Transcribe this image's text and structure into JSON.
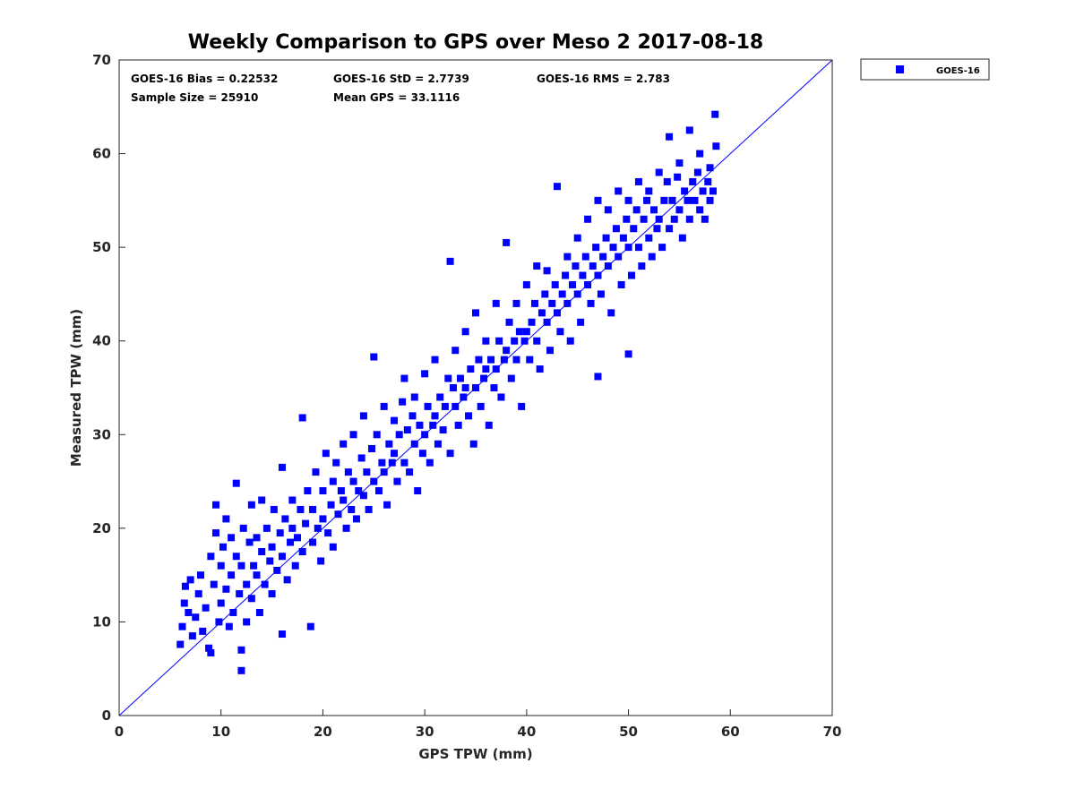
{
  "chart_data": {
    "type": "scatter",
    "title": "Weekly Comparison to GPS over Meso 2 2017-08-18",
    "xlabel": "GPS TPW (mm)",
    "ylabel": "Measured TPW (mm)",
    "xlim": [
      0,
      70
    ],
    "ylim": [
      0,
      70
    ],
    "xticks": [
      "0",
      "10",
      "20",
      "30",
      "40",
      "50",
      "60",
      "70"
    ],
    "yticks": [
      "0",
      "10",
      "20",
      "30",
      "40",
      "50",
      "60",
      "70"
    ],
    "grid": false,
    "legend": {
      "position": "outside-top-right",
      "entries": [
        "GOES-16"
      ]
    },
    "marker_color": "#0000ff",
    "reference_line": {
      "label": "1:1 line",
      "from": [
        0,
        0
      ],
      "to": [
        70,
        70
      ],
      "color": "#0000ff"
    },
    "stats": [
      "GOES-16 Bias = 0.22532",
      "GOES-16 StD = 2.7739",
      "GOES-16 RMS = 2.783",
      "Sample Size = 25910",
      "Mean GPS = 33.1116"
    ],
    "series": [
      {
        "name": "GOES-16",
        "note": "representative subset of the 25910 plotted samples",
        "points": [
          [
            6,
            7.6
          ],
          [
            6.2,
            9.5
          ],
          [
            6.4,
            12
          ],
          [
            6.5,
            13.8
          ],
          [
            6.8,
            11
          ],
          [
            7,
            14.5
          ],
          [
            7.2,
            8.5
          ],
          [
            7.5,
            10.5
          ],
          [
            7.8,
            13
          ],
          [
            8,
            15
          ],
          [
            8.2,
            9
          ],
          [
            8.5,
            11.5
          ],
          [
            8.8,
            7.2
          ],
          [
            9,
            6.7
          ],
          [
            9,
            17
          ],
          [
            9.3,
            14
          ],
          [
            9.5,
            19.5
          ],
          [
            9.5,
            22.5
          ],
          [
            9.8,
            10
          ],
          [
            10,
            12
          ],
          [
            10,
            16
          ],
          [
            10.2,
            18
          ],
          [
            10.5,
            13.5
          ],
          [
            10.5,
            21
          ],
          [
            10.8,
            9.5
          ],
          [
            11,
            15
          ],
          [
            11,
            19
          ],
          [
            11.2,
            11
          ],
          [
            11.5,
            24.8
          ],
          [
            11.5,
            17
          ],
          [
            11.8,
            13
          ],
          [
            12,
            4.8
          ],
          [
            12,
            7
          ],
          [
            12,
            16
          ],
          [
            12.2,
            20
          ],
          [
            12.5,
            14
          ],
          [
            12.5,
            10
          ],
          [
            12.8,
            18.5
          ],
          [
            13,
            12.5
          ],
          [
            13,
            22.5
          ],
          [
            13.2,
            16
          ],
          [
            13.5,
            15
          ],
          [
            13.5,
            19
          ],
          [
            13.8,
            11
          ],
          [
            14,
            17.5
          ],
          [
            14,
            23
          ],
          [
            14.3,
            14
          ],
          [
            14.5,
            20
          ],
          [
            14.8,
            16.5
          ],
          [
            15,
            13
          ],
          [
            15,
            18
          ],
          [
            15.2,
            22
          ],
          [
            15.5,
            15.5
          ],
          [
            15.8,
            19.5
          ],
          [
            16,
            8.7
          ],
          [
            16,
            17
          ],
          [
            16,
            26.5
          ],
          [
            16.3,
            21
          ],
          [
            16.5,
            14.5
          ],
          [
            16.8,
            18.5
          ],
          [
            17,
            20
          ],
          [
            17,
            23
          ],
          [
            17.3,
            16
          ],
          [
            17.5,
            19
          ],
          [
            17.8,
            22
          ],
          [
            18,
            17.5
          ],
          [
            18,
            31.8
          ],
          [
            18.3,
            20.5
          ],
          [
            18.5,
            24
          ],
          [
            18.8,
            9.5
          ],
          [
            19,
            18.5
          ],
          [
            19,
            22
          ],
          [
            19.3,
            26
          ],
          [
            19.5,
            20
          ],
          [
            19.8,
            16.5
          ],
          [
            20,
            21
          ],
          [
            20,
            24
          ],
          [
            20.3,
            28
          ],
          [
            20.5,
            19.5
          ],
          [
            20.8,
            22.5
          ],
          [
            21,
            25
          ],
          [
            21,
            18
          ],
          [
            21.3,
            27
          ],
          [
            21.5,
            21.5
          ],
          [
            21.8,
            24
          ],
          [
            22,
            23
          ],
          [
            22,
            29
          ],
          [
            22.3,
            20
          ],
          [
            22.5,
            26
          ],
          [
            22.8,
            22
          ],
          [
            23,
            25
          ],
          [
            23,
            30
          ],
          [
            23.3,
            21
          ],
          [
            23.5,
            24
          ],
          [
            23.8,
            27.5
          ],
          [
            24,
            23.5
          ],
          [
            24,
            32
          ],
          [
            24.3,
            26
          ],
          [
            24.5,
            22
          ],
          [
            24.8,
            28.5
          ],
          [
            25,
            25
          ],
          [
            25,
            38.3
          ],
          [
            25.3,
            30
          ],
          [
            25.5,
            24
          ],
          [
            25.8,
            27
          ],
          [
            26,
            26
          ],
          [
            26,
            33
          ],
          [
            26.3,
            22.5
          ],
          [
            26.5,
            29
          ],
          [
            26.8,
            27
          ],
          [
            27,
            28
          ],
          [
            27,
            31.5
          ],
          [
            27.3,
            25
          ],
          [
            27.5,
            30
          ],
          [
            27.8,
            33.5
          ],
          [
            28,
            27
          ],
          [
            28,
            36
          ],
          [
            28.3,
            30.5
          ],
          [
            28.5,
            26
          ],
          [
            28.8,
            32
          ],
          [
            29,
            29
          ],
          [
            29,
            34
          ],
          [
            29.3,
            24
          ],
          [
            29.5,
            31
          ],
          [
            29.8,
            28
          ],
          [
            30,
            30
          ],
          [
            30,
            36.5
          ],
          [
            30.3,
            33
          ],
          [
            30.5,
            27
          ],
          [
            30.8,
            31
          ],
          [
            31,
            32
          ],
          [
            31,
            38
          ],
          [
            31.3,
            29
          ],
          [
            31.5,
            34
          ],
          [
            31.8,
            30.5
          ],
          [
            32,
            33
          ],
          [
            32.5,
            48.5
          ],
          [
            32.3,
            36
          ],
          [
            32.5,
            28
          ],
          [
            32.8,
            35
          ],
          [
            33,
            33
          ],
          [
            33,
            39
          ],
          [
            33.3,
            31
          ],
          [
            33.5,
            36
          ],
          [
            33.8,
            34
          ],
          [
            34,
            35
          ],
          [
            34,
            41
          ],
          [
            34.3,
            32
          ],
          [
            34.5,
            37
          ],
          [
            34.8,
            29
          ],
          [
            35,
            35
          ],
          [
            35,
            43
          ],
          [
            35.3,
            38
          ],
          [
            35.5,
            33
          ],
          [
            35.8,
            36
          ],
          [
            36,
            37
          ],
          [
            36,
            40
          ],
          [
            36.3,
            31
          ],
          [
            36.5,
            38
          ],
          [
            36.8,
            35
          ],
          [
            37,
            37
          ],
          [
            37,
            44
          ],
          [
            37.3,
            40
          ],
          [
            37.5,
            34
          ],
          [
            37.8,
            38
          ],
          [
            38,
            39
          ],
          [
            38,
            50.5
          ],
          [
            38.3,
            42
          ],
          [
            38.5,
            36
          ],
          [
            38.8,
            40
          ],
          [
            39,
            38
          ],
          [
            39,
            44
          ],
          [
            39.3,
            41
          ],
          [
            39.5,
            33
          ],
          [
            39.8,
            40
          ],
          [
            40,
            41
          ],
          [
            40,
            46
          ],
          [
            40.3,
            38
          ],
          [
            40.5,
            42
          ],
          [
            40.8,
            44
          ],
          [
            41,
            40
          ],
          [
            41,
            48
          ],
          [
            41.3,
            37
          ],
          [
            41.5,
            43
          ],
          [
            41.8,
            45
          ],
          [
            42,
            42
          ],
          [
            42,
            47.5
          ],
          [
            42.3,
            39
          ],
          [
            42.5,
            44
          ],
          [
            42.8,
            46
          ],
          [
            43,
            43
          ],
          [
            43,
            56.5
          ],
          [
            43.3,
            41
          ],
          [
            43.5,
            45
          ],
          [
            43.8,
            47
          ],
          [
            44,
            44
          ],
          [
            44,
            49
          ],
          [
            44.3,
            40
          ],
          [
            44.5,
            46
          ],
          [
            44.8,
            48
          ],
          [
            45,
            45
          ],
          [
            45,
            51
          ],
          [
            45.3,
            42
          ],
          [
            45.5,
            47
          ],
          [
            45.8,
            49
          ],
          [
            46,
            46
          ],
          [
            46,
            53
          ],
          [
            46.3,
            44
          ],
          [
            46.5,
            48
          ],
          [
            46.8,
            50
          ],
          [
            47,
            36.2
          ],
          [
            47,
            47
          ],
          [
            47,
            55
          ],
          [
            47.3,
            45
          ],
          [
            47.5,
            49
          ],
          [
            47.8,
            51
          ],
          [
            48,
            48
          ],
          [
            48,
            54
          ],
          [
            48.3,
            43
          ],
          [
            48.5,
            50
          ],
          [
            48.8,
            52
          ],
          [
            49,
            49
          ],
          [
            49,
            56
          ],
          [
            49.3,
            46
          ],
          [
            49.5,
            51
          ],
          [
            49.8,
            53
          ],
          [
            50,
            38.6
          ],
          [
            50,
            50
          ],
          [
            50,
            55
          ],
          [
            50.3,
            47
          ],
          [
            50.5,
            52
          ],
          [
            50.8,
            54
          ],
          [
            51,
            50
          ],
          [
            51,
            57
          ],
          [
            51.3,
            48
          ],
          [
            51.5,
            53
          ],
          [
            51.8,
            55
          ],
          [
            52,
            51
          ],
          [
            52,
            56
          ],
          [
            52.3,
            49
          ],
          [
            52.5,
            54
          ],
          [
            52.8,
            52
          ],
          [
            53,
            53
          ],
          [
            53,
            58
          ],
          [
            53.3,
            50
          ],
          [
            53.5,
            55
          ],
          [
            53.8,
            57
          ],
          [
            54,
            52
          ],
          [
            54,
            61.8
          ],
          [
            54.3,
            55
          ],
          [
            54.5,
            53
          ],
          [
            54.8,
            57.5
          ],
          [
            55,
            54
          ],
          [
            55,
            59
          ],
          [
            55.3,
            51
          ],
          [
            55.5,
            56
          ],
          [
            55.8,
            55
          ],
          [
            56,
            62.5
          ],
          [
            56,
            53
          ],
          [
            56.3,
            57
          ],
          [
            56.5,
            55
          ],
          [
            56.8,
            58
          ],
          [
            57,
            54
          ],
          [
            57,
            60
          ],
          [
            57.3,
            56
          ],
          [
            57.5,
            53
          ],
          [
            57.8,
            57
          ],
          [
            58,
            55
          ],
          [
            58,
            58.5
          ],
          [
            58.5,
            64.2
          ],
          [
            58.6,
            60.8
          ],
          [
            58.3,
            56
          ]
        ]
      }
    ]
  }
}
